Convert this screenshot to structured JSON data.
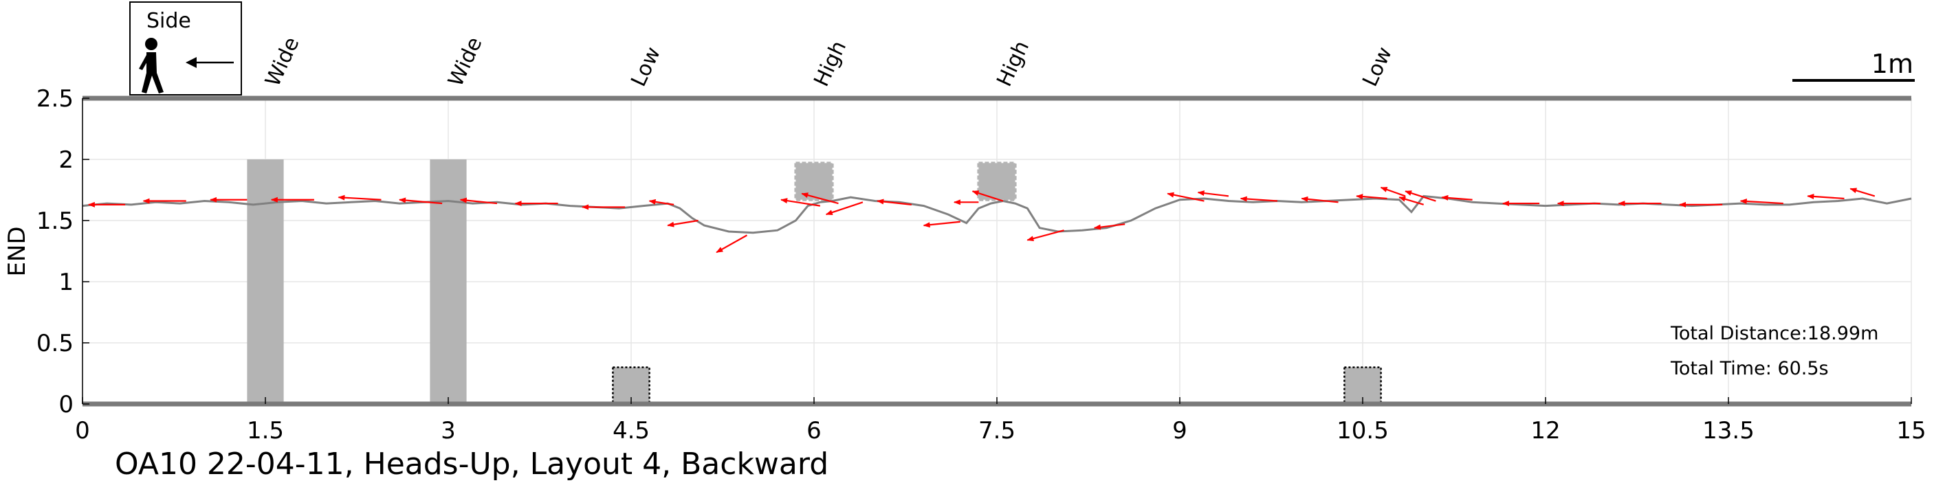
{
  "chart_data": {
    "type": "line",
    "caption": "OA10 22-04-11, Heads-Up, Layout 4, Backward",
    "xlabel": "",
    "ylabel": "END",
    "xlim": [
      0,
      15
    ],
    "ylim": [
      0,
      2.5
    ],
    "grid": true,
    "xticks": [
      0,
      1.5,
      3,
      4.5,
      6,
      7.5,
      9,
      10.5,
      12,
      13.5,
      15
    ],
    "xtick_labels": [
      "0",
      "1.5",
      "3",
      "4.5",
      "6",
      "7.5",
      "9",
      "10.5",
      "12",
      "13.5",
      "15"
    ],
    "yticks": [
      0,
      0.5,
      1,
      1.5,
      2,
      2.5
    ],
    "ytick_labels": [
      "0",
      "0.5",
      "1",
      "1.5",
      "2",
      "2.5"
    ],
    "legend": {
      "label": "Side",
      "position": "top-left",
      "icon": "walking-person-icon",
      "arrow": "left-arrow-icon"
    },
    "scale_bar": {
      "label": "1m",
      "length": 1
    },
    "annotations": {
      "total_distance": "Total Distance:18.99m",
      "total_time": "Total Time: 60.5s"
    },
    "obstacles": [
      {
        "label": "Wide",
        "label_x": 1.6,
        "type": "wide",
        "x_start": 1.35,
        "x_end": 1.65,
        "y_bottom": 0,
        "y_top": 2.0
      },
      {
        "label": "Wide",
        "label_x": 3.1,
        "type": "wide",
        "x_start": 2.85,
        "x_end": 3.15,
        "y_bottom": 0,
        "y_top": 2.0
      },
      {
        "label": "Low",
        "label_x": 4.6,
        "type": "low",
        "x_start": 4.35,
        "x_end": 4.65,
        "y_bottom": 0,
        "y_top": 0.3
      },
      {
        "label": "High",
        "label_x": 6.1,
        "type": "high",
        "x_start": 5.85,
        "x_end": 6.15,
        "y_bottom": 1.67,
        "y_top": 1.97
      },
      {
        "label": "High",
        "label_x": 7.6,
        "type": "high",
        "x_start": 7.35,
        "x_end": 7.65,
        "y_bottom": 1.67,
        "y_top": 1.97
      },
      {
        "label": "Low",
        "label_x": 10.6,
        "type": "low",
        "x_start": 10.35,
        "x_end": 10.65,
        "y_bottom": 0,
        "y_top": 0.3
      }
    ],
    "series": [
      {
        "color": "#808080",
        "x": [
          0,
          0.2,
          0.4,
          0.6,
          0.8,
          1.0,
          1.2,
          1.4,
          1.6,
          1.8,
          2.0,
          2.2,
          2.4,
          2.6,
          2.8,
          3.0,
          3.2,
          3.4,
          3.6,
          3.8,
          4.0,
          4.2,
          4.4,
          4.6,
          4.8,
          4.9,
          4.95,
          5.0,
          5.1,
          5.3,
          5.5,
          5.7,
          5.85,
          5.95,
          6.05,
          6.15,
          6.3,
          6.5,
          6.7,
          6.9,
          7.1,
          7.25,
          7.35,
          7.45,
          7.55,
          7.65,
          7.75,
          7.85,
          8.0,
          8.2,
          8.4,
          8.6,
          8.8,
          9.0,
          9.2,
          9.4,
          9.6,
          9.8,
          10.0,
          10.2,
          10.4,
          10.6,
          10.8,
          10.9,
          11.0,
          11.2,
          11.4,
          11.6,
          11.8,
          12.0,
          12.2,
          12.4,
          12.6,
          12.8,
          13.0,
          13.2,
          13.4,
          13.6,
          13.8,
          14.0,
          14.2,
          14.4,
          14.6,
          14.8,
          15.0
        ],
        "y": [
          1.62,
          1.64,
          1.63,
          1.65,
          1.64,
          1.66,
          1.65,
          1.63,
          1.65,
          1.66,
          1.64,
          1.65,
          1.66,
          1.64,
          1.65,
          1.66,
          1.64,
          1.65,
          1.63,
          1.64,
          1.62,
          1.61,
          1.6,
          1.62,
          1.64,
          1.6,
          1.56,
          1.52,
          1.46,
          1.41,
          1.4,
          1.42,
          1.5,
          1.62,
          1.65,
          1.66,
          1.69,
          1.66,
          1.65,
          1.62,
          1.55,
          1.48,
          1.6,
          1.64,
          1.66,
          1.64,
          1.6,
          1.44,
          1.41,
          1.42,
          1.44,
          1.5,
          1.6,
          1.67,
          1.68,
          1.66,
          1.65,
          1.66,
          1.65,
          1.66,
          1.67,
          1.68,
          1.67,
          1.57,
          1.7,
          1.68,
          1.65,
          1.64,
          1.63,
          1.62,
          1.63,
          1.64,
          1.63,
          1.64,
          1.63,
          1.62,
          1.63,
          1.64,
          1.63,
          1.63,
          1.65,
          1.66,
          1.68,
          1.64,
          1.68
        ]
      }
    ],
    "direction_arrows": [
      {
        "x": 0.35,
        "y": 1.63,
        "dx": -0.3,
        "dy": 0.0
      },
      {
        "x": 0.85,
        "y": 1.66,
        "dx": -0.35,
        "dy": 0.0
      },
      {
        "x": 1.35,
        "y": 1.67,
        "dx": -0.3,
        "dy": 0.0
      },
      {
        "x": 1.9,
        "y": 1.67,
        "dx": -0.35,
        "dy": 0.0
      },
      {
        "x": 2.45,
        "y": 1.67,
        "dx": -0.35,
        "dy": 0.02
      },
      {
        "x": 2.95,
        "y": 1.64,
        "dx": -0.35,
        "dy": 0.03
      },
      {
        "x": 3.4,
        "y": 1.64,
        "dx": -0.3,
        "dy": 0.03
      },
      {
        "x": 3.9,
        "y": 1.64,
        "dx": -0.35,
        "dy": 0.0
      },
      {
        "x": 4.45,
        "y": 1.61,
        "dx": -0.35,
        "dy": 0.0
      },
      {
        "x": 4.85,
        "y": 1.63,
        "dx": -0.2,
        "dy": 0.03
      },
      {
        "x": 5.05,
        "y": 1.5,
        "dx": -0.25,
        "dy": -0.04
      },
      {
        "x": 5.45,
        "y": 1.38,
        "dx": -0.25,
        "dy": -0.14
      },
      {
        "x": 6.05,
        "y": 1.62,
        "dx": -0.32,
        "dy": 0.05
      },
      {
        "x": 6.2,
        "y": 1.64,
        "dx": -0.3,
        "dy": 0.08
      },
      {
        "x": 6.4,
        "y": 1.65,
        "dx": -0.3,
        "dy": -0.1
      },
      {
        "x": 6.8,
        "y": 1.63,
        "dx": -0.28,
        "dy": 0.03
      },
      {
        "x": 7.2,
        "y": 1.49,
        "dx": -0.3,
        "dy": -0.03
      },
      {
        "x": 7.35,
        "y": 1.65,
        "dx": -0.2,
        "dy": 0.0
      },
      {
        "x": 7.55,
        "y": 1.66,
        "dx": -0.25,
        "dy": 0.08
      },
      {
        "x": 8.05,
        "y": 1.42,
        "dx": -0.3,
        "dy": -0.08
      },
      {
        "x": 8.55,
        "y": 1.47,
        "dx": -0.25,
        "dy": -0.03
      },
      {
        "x": 9.2,
        "y": 1.66,
        "dx": -0.3,
        "dy": 0.06
      },
      {
        "x": 9.4,
        "y": 1.7,
        "dx": -0.25,
        "dy": 0.03
      },
      {
        "x": 9.8,
        "y": 1.66,
        "dx": -0.3,
        "dy": 0.02
      },
      {
        "x": 10.3,
        "y": 1.65,
        "dx": -0.3,
        "dy": 0.03
      },
      {
        "x": 10.7,
        "y": 1.68,
        "dx": -0.25,
        "dy": 0.02
      },
      {
        "x": 10.85,
        "y": 1.7,
        "dx": -0.2,
        "dy": 0.07
      },
      {
        "x": 11.0,
        "y": 1.63,
        "dx": -0.2,
        "dy": 0.06
      },
      {
        "x": 11.1,
        "y": 1.66,
        "dx": -0.25,
        "dy": 0.08
      },
      {
        "x": 11.4,
        "y": 1.67,
        "dx": -0.25,
        "dy": 0.02
      },
      {
        "x": 11.95,
        "y": 1.64,
        "dx": -0.3,
        "dy": 0.0
      },
      {
        "x": 12.45,
        "y": 1.64,
        "dx": -0.35,
        "dy": 0.0
      },
      {
        "x": 12.95,
        "y": 1.64,
        "dx": -0.35,
        "dy": 0.0
      },
      {
        "x": 13.45,
        "y": 1.63,
        "dx": -0.35,
        "dy": 0.0
      },
      {
        "x": 13.95,
        "y": 1.64,
        "dx": -0.35,
        "dy": 0.02
      },
      {
        "x": 14.45,
        "y": 1.68,
        "dx": -0.3,
        "dy": 0.02
      },
      {
        "x": 14.7,
        "y": 1.7,
        "dx": -0.2,
        "dy": 0.06
      }
    ]
  }
}
